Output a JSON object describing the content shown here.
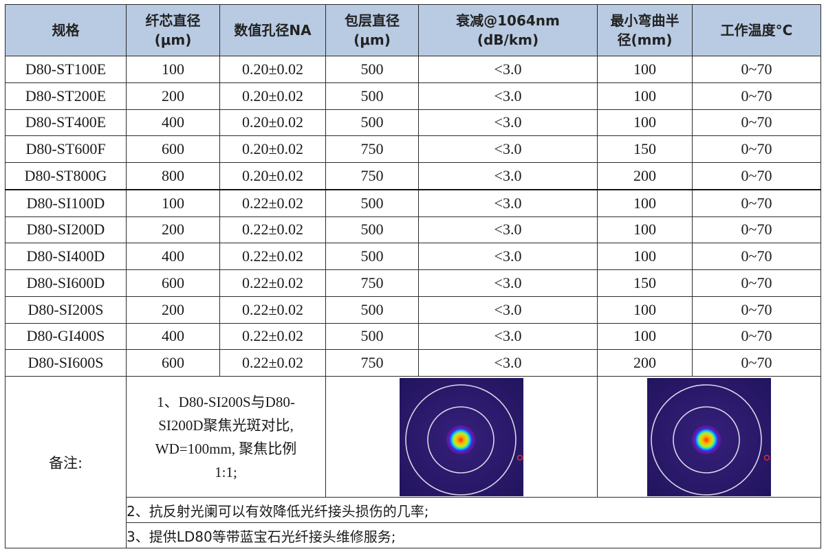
{
  "headers": [
    {
      "line1": "规格",
      "line2": ""
    },
    {
      "line1": "纤芯直径",
      "line2": "(μm)"
    },
    {
      "line1": "数值孔径NA",
      "line2": ""
    },
    {
      "line1": "包层直径",
      "line2": "(μm)"
    },
    {
      "line1": "衰减@1064nm",
      "line2": "(dB/km)"
    },
    {
      "line1": "最小弯曲半",
      "line2": "径(mm)"
    },
    {
      "line1": "工作温度°C",
      "line2": ""
    }
  ],
  "rows": [
    [
      "D80-ST100E",
      "100",
      "0.20±0.02",
      "500",
      "<3.0",
      "100",
      "0~70"
    ],
    [
      "D80-ST200E",
      "200",
      "0.20±0.02",
      "500",
      "<3.0",
      "100",
      "0~70"
    ],
    [
      "D80-ST400E",
      "400",
      "0.20±0.02",
      "500",
      "<3.0",
      "100",
      "0~70"
    ],
    [
      "D80-ST600F",
      "600",
      "0.20±0.02",
      "750",
      "<3.0",
      "150",
      "0~70"
    ],
    [
      "D80-ST800G",
      "800",
      "0.20±0.02",
      "750",
      "<3.0",
      "200",
      "0~70"
    ],
    [
      "D80-SI100D",
      "100",
      "0.22±0.02",
      "500",
      "<3.0",
      "100",
      "0~70"
    ],
    [
      "D80-SI200D",
      "200",
      "0.22±0.02",
      "500",
      "<3.0",
      "100",
      "0~70"
    ],
    [
      "D80-SI400D",
      "400",
      "0.22±0.02",
      "500",
      "<3.0",
      "100",
      "0~70"
    ],
    [
      "D80-SI600D",
      "600",
      "0.22±0.02",
      "750",
      "<3.0",
      "150",
      "0~70"
    ],
    [
      "D80-SI200S",
      "200",
      "0.22±0.02",
      "500",
      "<3.0",
      "100",
      "0~70"
    ],
    [
      "D80-GI400S",
      "400",
      "0.22±0.02",
      "500",
      "<3.0",
      "100",
      "0~70"
    ],
    [
      "D80-SI600S",
      "600",
      "0.22±0.02",
      "750",
      "<3.0",
      "200",
      "0~70"
    ]
  ],
  "remarks": {
    "label": "备注:",
    "note1_lines": [
      "1、D80-SI200S与D80-",
      "SI200D聚焦光斑对比,",
      "WD=100mm, 聚焦比例",
      "1:1;"
    ],
    "note2": "2、抗反射光阑可以有效降低光纤接头损伤的几率;",
    "note3": "3、提供LD80等带蓝宝石光纤接头维修服务;"
  },
  "colors": {
    "header_bg": "#b8cbe2",
    "border": "#2a2a2a",
    "spot_bg": "#2a1a6e",
    "ring": "#d8d8e8",
    "marker": "#e0302a"
  }
}
